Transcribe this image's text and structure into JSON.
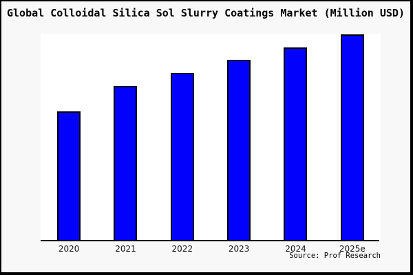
{
  "chart_data": {
    "type": "bar",
    "title": "Global Colloidal Silica Sol Slurry Coatings Market (Million USD)",
    "categories": [
      "2020",
      "2021",
      "2022",
      "2023",
      "2024",
      "2025e"
    ],
    "values": [
      62.6,
      74.8,
      81.1,
      87.4,
      93.4,
      99.7
    ],
    "values_note": "No y-axis scale or data labels are shown in the chart; values are relative bar heights as percent of plot height (ratios approx 1.00 : 1.20 : 1.30 : 1.40 : 1.49 : 1.59 vs 2020)",
    "xlabel": "",
    "ylabel": "",
    "ylim": [
      0,
      100
    ],
    "grid": false,
    "legend": false,
    "y_axis_shown": false,
    "bar_color": "#0202fc",
    "bar_border_color": "#000000",
    "plot_bg_color": "#ffffff",
    "canvas_bg_color": "#f8f8f8",
    "frame_border_color": "#000000",
    "source": "Source: Prof Research"
  }
}
